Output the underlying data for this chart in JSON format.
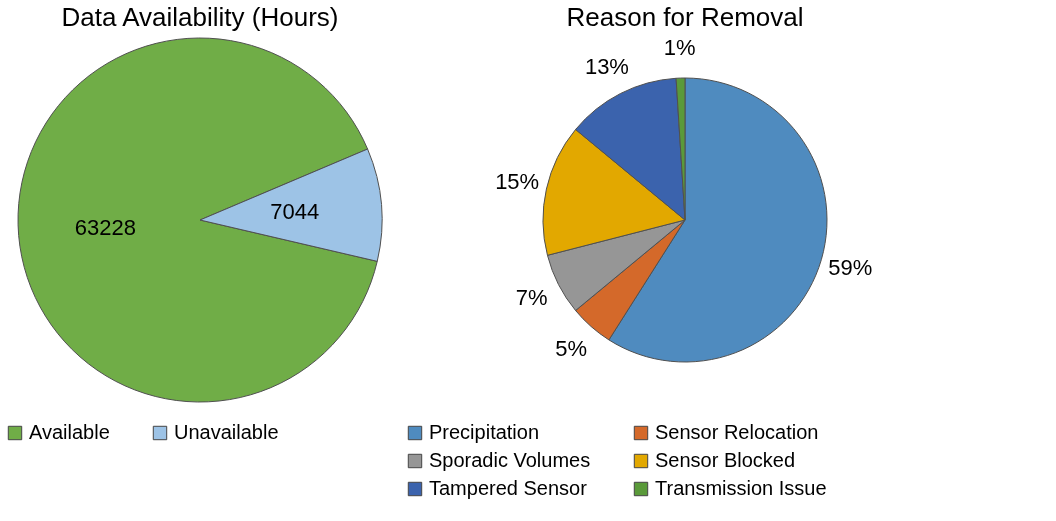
{
  "chart_data": [
    {
      "type": "pie",
      "title": "Data Availability (Hours)",
      "categories": [
        "Available",
        "Unavailable"
      ],
      "values": [
        63228,
        7044
      ],
      "colors": [
        "#70ad47",
        "#9dc3e6"
      ],
      "data_labels": true,
      "legend": "bottom"
    },
    {
      "type": "pie",
      "title": "Reason for Removal",
      "categories": [
        "Precipitation",
        "Sensor Relocation",
        "Sporadic Volumes",
        "Sensor Blocked",
        "Tampered Sensor",
        "Transmission Issue"
      ],
      "values": [
        59,
        5,
        7,
        15,
        13,
        1
      ],
      "colors": [
        "#4f8bbf",
        "#d4692a",
        "#969696",
        "#e2a800",
        "#3b63ad",
        "#5a9a3a"
      ],
      "value_labels": [
        "59%",
        "5%",
        "7%",
        "15%",
        "13%",
        "1%"
      ],
      "legend": "bottom"
    }
  ]
}
